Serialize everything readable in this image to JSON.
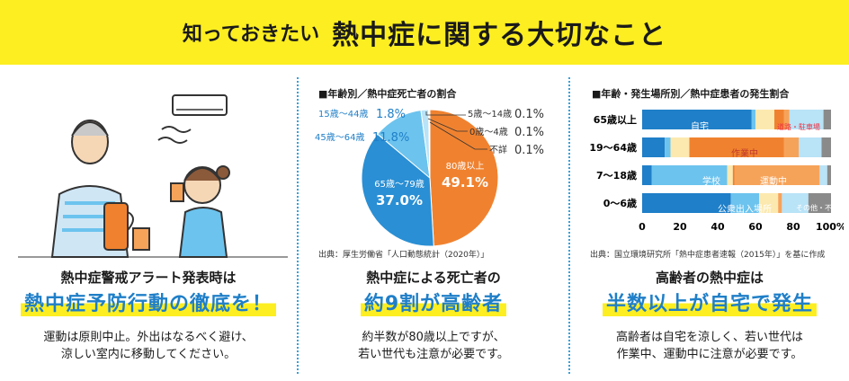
{
  "banner": {
    "pre": "知っておきたい",
    "main": "熱中症に関する大切なこと"
  },
  "col1": {
    "title": "熱中症警戒アラート発表時は",
    "highlight": "熱中症予防行動の徹底を！",
    "desc1": "運動は原則中止。外出はなるべく避け、",
    "desc2": "涼しい室内に移動してください。"
  },
  "col2": {
    "chart_title": "■年齢別／熱中症死亡者の割合",
    "source": "出典：厚生労働省「人口動態統計（2020年）」",
    "title": "熱中症による死亡者の",
    "highlight": "約9割が高齢者",
    "desc1": "約半数が80歳以上ですが、",
    "desc2": "若い世代も注意が必要です。",
    "labels": {
      "l80": "80歳以上",
      "v80": "49.1%",
      "l65": "65歳～79歳",
      "v65": "37.0%",
      "l45": "45歳～64歳",
      "v45": "11.8%",
      "l15": "15歳～44歳",
      "v15": "1.8%",
      "l5": "5歳～14歳",
      "v5": "0.1%",
      "l0": "0歳～4歳",
      "v0": "0.1%",
      "lu": "不詳",
      "vu": "0.1%"
    }
  },
  "col3": {
    "chart_title": "■年齢・発生場所別／熱中症患者の発生割合",
    "source": "出典：国立環境研究所「熱中症患者速報（2015年）」を基に作成",
    "title": "高齢者の熱中症は",
    "highlight": "半数以上が自宅で発生",
    "desc1": "高齢者は自宅を涼しく、若い世代は",
    "desc2": "作業中、運動中に注意が必要です。",
    "rows": [
      "65歳以上",
      "19～64歳",
      "7～18歳",
      "0～6歳"
    ],
    "ticks": [
      "0",
      "20",
      "40",
      "60",
      "80",
      "100%"
    ],
    "bar_labels": {
      "home": "自宅",
      "road": "道路・駐車場",
      "work": "作業中",
      "school": "学校",
      "sport": "運動中",
      "public": "公衆出入場所",
      "other": "その他・不明"
    }
  },
  "chart_data": [
    {
      "type": "pie",
      "title": "年齢別／熱中症死亡者の割合",
      "categories": [
        "80歳以上",
        "65歳～79歳",
        "45歳～64歳",
        "15歳～44歳",
        "5歳～14歳",
        "0歳～4歳",
        "不詳"
      ],
      "values": [
        49.1,
        37.0,
        11.8,
        1.8,
        0.1,
        0.1,
        0.1
      ],
      "colors": [
        "#f0822f",
        "#2a8fd4",
        "#6cc3ee",
        "#b9e3f7",
        "#fcee21",
        "#d9d9d9",
        "#9a9a9a"
      ]
    },
    {
      "type": "bar",
      "title": "年齢・発生場所別／熱中症患者の発生割合",
      "categories": [
        "65歳以上",
        "19～64歳",
        "7～18歳",
        "0～6歳"
      ],
      "xlim": [
        0,
        100
      ],
      "series": [
        {
          "name": "自宅",
          "color": "#1f7fc8",
          "values": [
            58,
            12,
            5,
            47
          ]
        },
        {
          "name": "学校",
          "color": "#6cc3ee",
          "values": [
            2,
            3,
            40,
            15
          ]
        },
        {
          "name": "道路・駐車場",
          "color": "#fce9b0",
          "values": [
            10,
            10,
            3,
            10
          ]
        },
        {
          "name": "作業中",
          "color": "#f0822f",
          "values": [
            5,
            50,
            1,
            0
          ]
        },
        {
          "name": "運動中",
          "color": "#f6a35a",
          "values": [
            3,
            8,
            45,
            2
          ]
        },
        {
          "name": "公衆出入場所",
          "color": "#b9e3f7",
          "values": [
            18,
            12,
            4,
            14
          ]
        },
        {
          "name": "その他・不明",
          "color": "#8a8a8a",
          "values": [
            4,
            5,
            2,
            12
          ]
        }
      ]
    }
  ]
}
